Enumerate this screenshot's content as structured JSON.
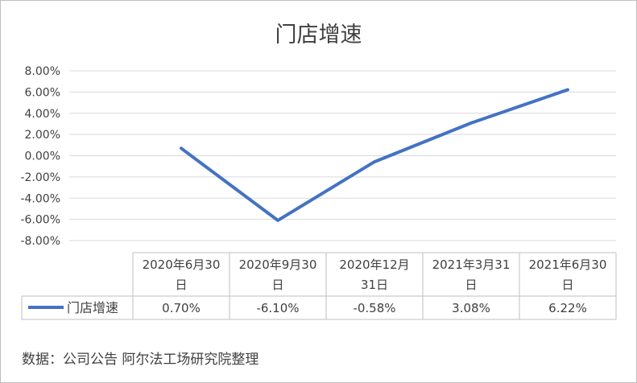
{
  "chart_data": {
    "type": "line",
    "title": "门店增速",
    "yticks": [
      "8.00%",
      "6.00%",
      "4.00%",
      "2.00%",
      "0.00%",
      "-2.00%",
      "-4.00%",
      "-6.00%",
      "-8.00%"
    ],
    "ylim": [
      -8,
      8
    ],
    "categories": [
      [
        "2020年6月30",
        "日"
      ],
      [
        "2020年9月30",
        "日"
      ],
      [
        "2020年12月",
        "31日"
      ],
      [
        "2021年3月31",
        "日"
      ],
      [
        "2021年6月30",
        "日"
      ]
    ],
    "series": [
      {
        "name": "门店增速",
        "values": [
          0.7,
          -6.1,
          -0.58,
          3.08,
          6.22
        ],
        "labels": [
          "0.70%",
          "-6.10%",
          "-0.58%",
          "3.08%",
          "6.22%"
        ],
        "color": "#4472c4"
      }
    ],
    "grid": true,
    "legend": "data-table"
  },
  "source_note": "数据：公司公告 阿尔法工场研究院整理"
}
